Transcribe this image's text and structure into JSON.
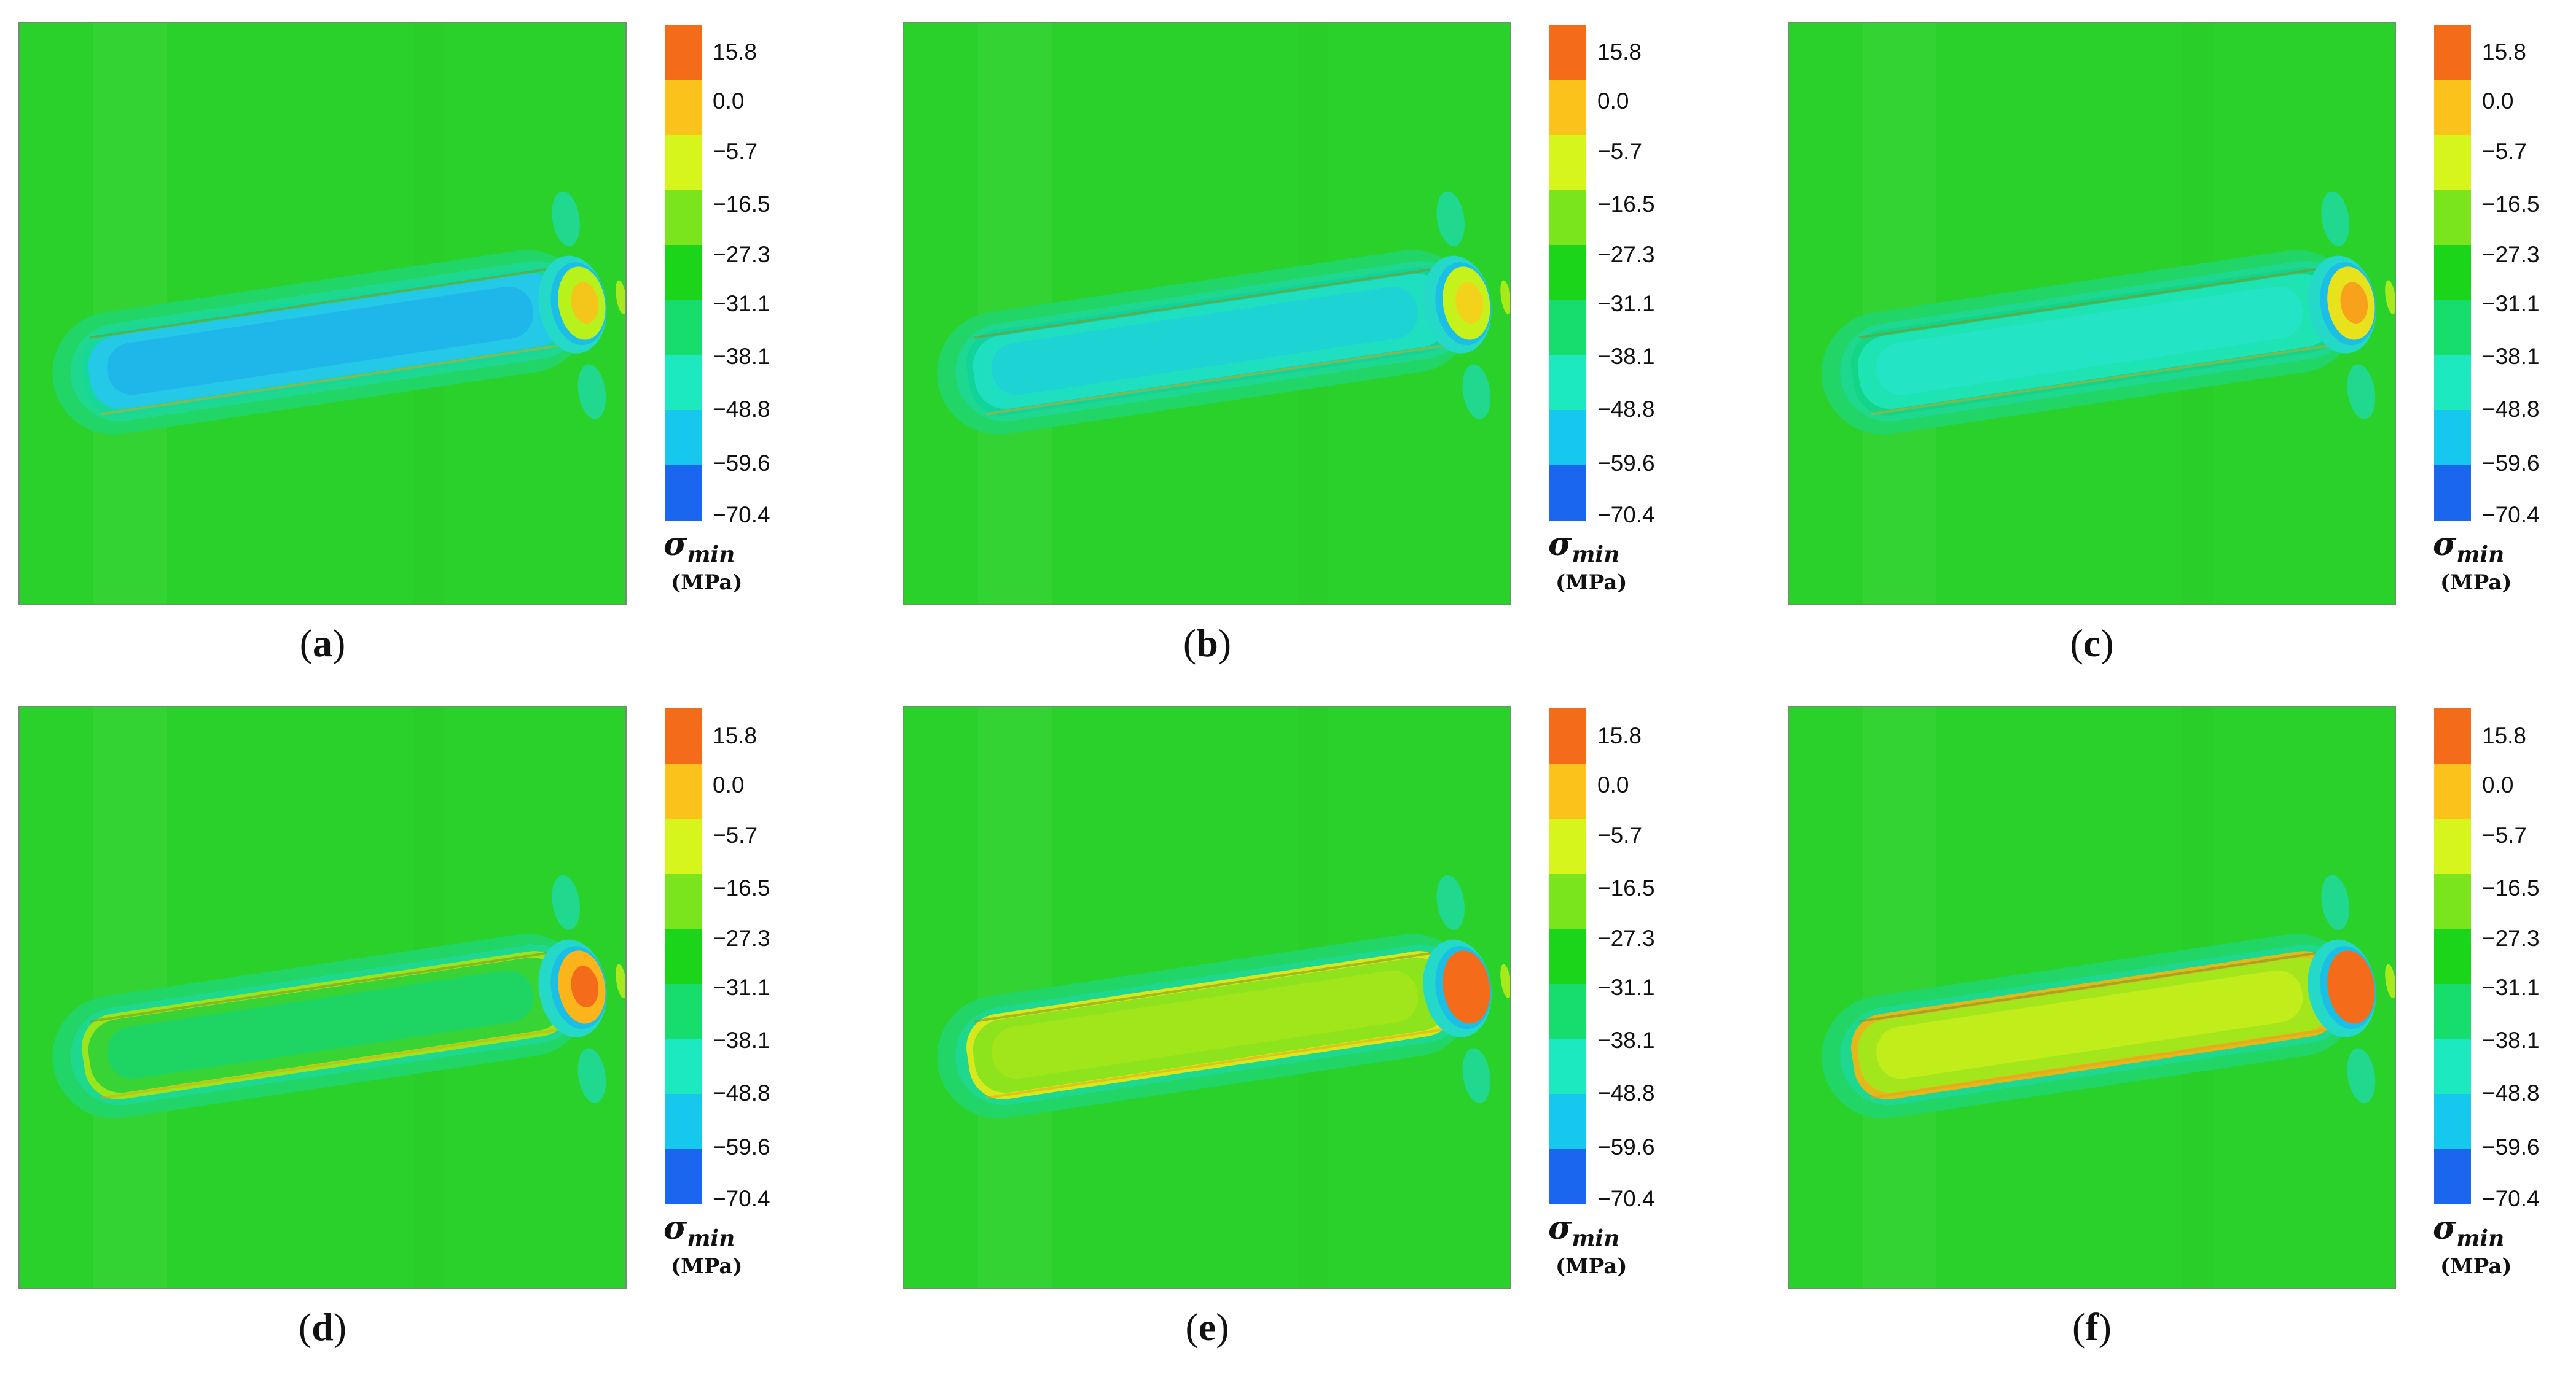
{
  "colorbar": {
    "ticks": [
      "15.8",
      "0.0",
      "−5.7",
      "−16.5",
      "−27.3",
      "−31.1",
      "−38.1",
      "−48.8",
      "−59.6",
      "−70.4"
    ],
    "colors": [
      "#f46b1a",
      "#fbc21b",
      "#d6f51c",
      "#7ae41c",
      "#1bd51b",
      "#16dd6b",
      "#1de9c0",
      "#16c8ee",
      "#1a66ee"
    ],
    "title": "σmin",
    "title_symbol": "σ",
    "title_sub": "min",
    "unit": "(MPa)"
  },
  "background_color": "#2bd12b",
  "panels": [
    {
      "label": "a",
      "caption_open": "(",
      "caption_close": ")",
      "tube_fill": "#24c9e8",
      "core_fill": "#1fb5ea",
      "inner_edge": "#15d89a",
      "tip_fill": "#b8f21c",
      "tip_core": "#f4c51a"
    },
    {
      "label": "b",
      "caption_open": "(",
      "caption_close": ")",
      "tube_fill": "#1ee0c0",
      "core_fill": "#1ed2d6",
      "inner_edge": "#12d49a",
      "tip_fill": "#c6f21c",
      "tip_core": "#f2d21a"
    },
    {
      "label": "c",
      "caption_open": "(",
      "caption_close": ")",
      "tube_fill": "#1ee4b4",
      "core_fill": "#25e3c8",
      "inner_edge": "#14d487",
      "tip_fill": "#e8e21c",
      "tip_core": "#f7a21a"
    },
    {
      "label": "d",
      "caption_open": "(",
      "caption_close": ")",
      "tube_fill": "#38d436",
      "core_fill": "#1cd569",
      "inner_edge": "#9be51c",
      "tip_fill": "#fbb41a",
      "tip_core": "#f46b1a"
    },
    {
      "label": "e",
      "caption_open": "(",
      "caption_close": ")",
      "tube_fill": "#8de41c",
      "core_fill": "#a2e61c",
      "inner_edge": "#d8e81c",
      "tip_fill": "#f46b1a",
      "tip_core": "#f46b1a"
    },
    {
      "label": "f",
      "caption_open": "(",
      "caption_close": ")",
      "tube_fill": "#a4e61c",
      "core_fill": "#c4ed1c",
      "inner_edge": "#e3b81a",
      "tip_fill": "#f46b1a",
      "tip_core": "#f46b1a"
    }
  ]
}
